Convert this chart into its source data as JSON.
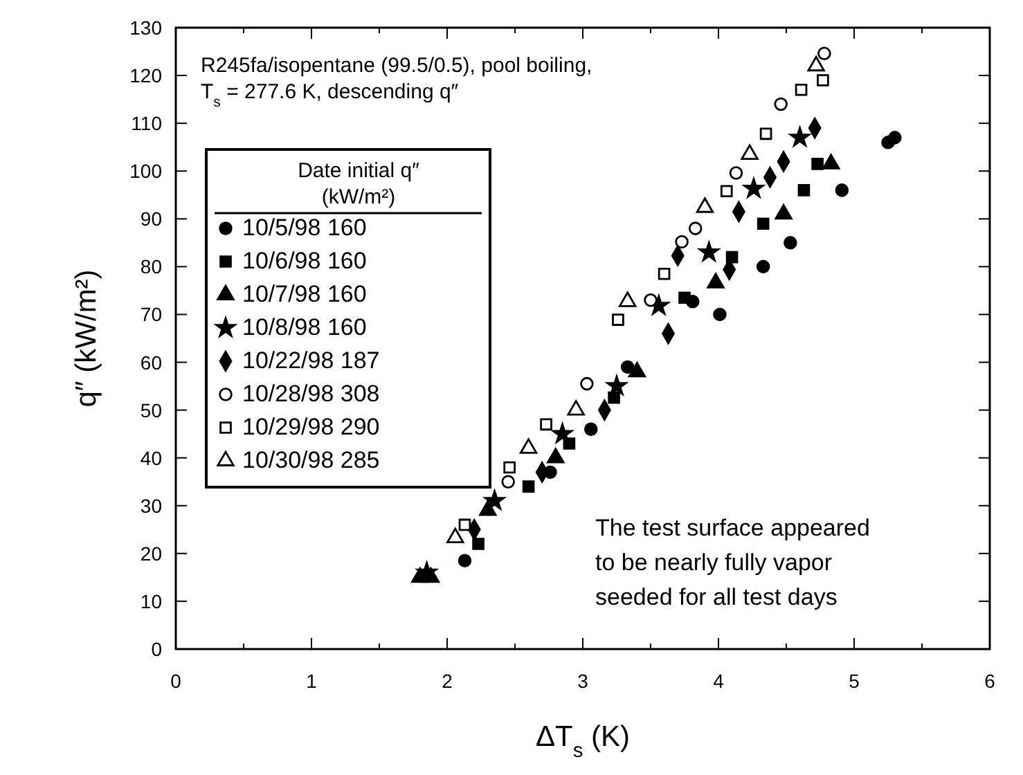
{
  "chart_data": {
    "type": "scatter",
    "title": "R245fa/isopentane (99.5/0.5), pool boiling, T$_{s}$ = 277.6 K, descending q″",
    "xlabel": "ΔT$_{s}$ (K)",
    "ylabel": "q″ (kW/m²)",
    "legend_title": "Date   initial q″ (kW/m²)",
    "legend": "left",
    "annotations": [
      "The test surface appeared to be nearly fully vapor seeded for all test days"
    ],
    "xlim": [
      0,
      6
    ],
    "ylim": [
      0,
      130
    ],
    "xticks": [
      0,
      {
        "value": 0.5,
        "label": null
      },
      1,
      {
        "value": 1.5,
        "label": null
      },
      2,
      {
        "value": 2.5,
        "label": null
      },
      3,
      {
        "value": 3.5,
        "label": null
      },
      4,
      {
        "value": 4.5,
        "label": null
      },
      5,
      {
        "value": 5.5,
        "label": null
      },
      6
    ],
    "yticks": [
      0,
      10,
      20,
      30,
      40,
      50,
      60,
      70,
      80,
      90,
      100,
      110,
      120,
      130
    ],
    "series": [
      {
        "name": "10/5/98 160",
        "color": "#000000",
        "marker": "circle",
        "x": [
          2.13,
          2.76,
          3.06,
          3.33,
          3.81,
          4.01,
          4.33,
          4.53,
          4.91,
          5.25,
          5.3
        ],
        "values": [
          18.5,
          37,
          46,
          59,
          72.7,
          70,
          80,
          85,
          96,
          106,
          107
        ]
      },
      {
        "name": "10/6/98 160",
        "color": "#000000",
        "marker": "square",
        "x": [
          2.23,
          2.6,
          2.9,
          3.23,
          3.75,
          4.1,
          4.33,
          4.63,
          4.73
        ],
        "values": [
          22,
          34,
          43,
          52.6,
          73.5,
          82,
          89,
          96,
          101.5
        ]
      },
      {
        "name": "10/7/98 160",
        "color": "#000000",
        "marker": "triangle",
        "x": [
          1.8,
          1.88,
          2.3,
          2.8,
          3.4,
          3.98,
          4.48,
          4.83
        ],
        "values": [
          15,
          15,
          29,
          40,
          58,
          76.6,
          91,
          101.5
        ]
      },
      {
        "name": "10/8/98 160",
        "color": "#000000",
        "marker": "star",
        "x": [
          1.85,
          2.35,
          2.85,
          3.25,
          3.56,
          3.93,
          4.26,
          4.6
        ],
        "values": [
          16,
          31,
          45,
          55,
          71.8,
          83,
          96.3,
          107
        ]
      },
      {
        "name": "10/22/98 187",
        "color": "#000000",
        "marker": "diamond",
        "x": [
          2.2,
          2.7,
          3.16,
          3.63,
          3.7,
          4.08,
          4.15,
          4.38,
          4.48,
          4.71
        ],
        "values": [
          25,
          37,
          50,
          66,
          82.3,
          79.4,
          91.5,
          98.7,
          102,
          109
        ]
      },
      {
        "name": "10/28/98 308",
        "color": "#ffffff",
        "marker": "circle",
        "x": [
          2.45,
          3.03,
          3.5,
          3.73,
          3.83,
          4.13,
          4.46,
          4.78
        ],
        "values": [
          35,
          55.5,
          73,
          85.2,
          88,
          99.6,
          114,
          124.6
        ]
      },
      {
        "name": "10/29/98 290",
        "color": "#ffffff",
        "marker": "square",
        "x": [
          2.13,
          2.46,
          2.73,
          3.26,
          3.6,
          4.06,
          4.35,
          4.61,
          4.77
        ],
        "values": [
          26,
          38,
          47,
          68.9,
          78.5,
          95.8,
          107.8,
          117,
          119
        ]
      },
      {
        "name": "10/30/98 285",
        "color": "#ffffff",
        "marker": "triangle",
        "x": [
          2.06,
          2.6,
          2.95,
          3.33,
          3.9,
          4.23,
          4.72
        ],
        "values": [
          23.3,
          42,
          50,
          72.7,
          92.4,
          103.5,
          122
        ]
      }
    ]
  }
}
